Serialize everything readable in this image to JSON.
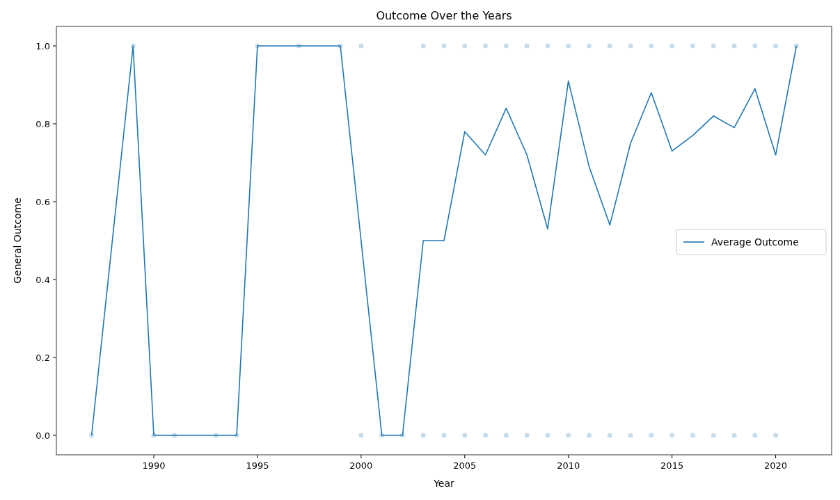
{
  "chart_data": {
    "type": "line",
    "title": "Outcome Over the Years",
    "xlabel": "Year",
    "ylabel": "General Outcome",
    "xlim": [
      1985.3,
      2022.7
    ],
    "xticks": [
      1990,
      1995,
      2000,
      2005,
      2010,
      2015,
      2020
    ],
    "ylim": [
      -0.05,
      1.05
    ],
    "yticks": [
      {
        "value": 0,
        "label": "0.0"
      },
      {
        "value": 0.2,
        "label": "0.2"
      },
      {
        "value": 0.4,
        "label": "0.4"
      },
      {
        "value": 0.6,
        "label": "0.6"
      },
      {
        "value": 0.8,
        "label": "0.8"
      },
      {
        "value": 1,
        "label": "1.0"
      }
    ],
    "grid": false,
    "legend": "right",
    "series": [
      {
        "type": "scatter",
        "color": "#1f77b4",
        "marker": "circle",
        "x": [
          1987,
          1990,
          1991,
          1993,
          1994,
          2000,
          2001,
          2002,
          2003,
          2004,
          2005,
          2006,
          2007,
          2008,
          2009,
          2010,
          2011,
          2012,
          2013,
          2014,
          2015,
          2016,
          2017,
          2018,
          2019,
          2020,
          1989,
          1995,
          1997,
          1999,
          2000,
          2003,
          2004,
          2005,
          2006,
          2007,
          2008,
          2009,
          2010,
          2011,
          2012,
          2013,
          2014,
          2015,
          2016,
          2017,
          2018,
          2019,
          2020,
          2021
        ],
        "values": [
          0,
          0,
          0,
          0,
          0,
          0,
          0,
          0,
          0,
          0,
          0,
          0,
          0,
          0,
          0,
          0,
          0,
          0,
          0,
          0,
          0,
          0,
          0,
          0,
          0,
          0,
          1,
          1,
          1,
          1,
          1,
          1,
          1,
          1,
          1,
          1,
          1,
          1,
          1,
          1,
          1,
          1,
          1,
          1,
          1,
          1,
          1,
          1,
          1,
          1
        ]
      },
      {
        "name": "Average Outcome",
        "color": "#1f77b4",
        "marker": "none",
        "line_style": "solid",
        "x": [
          1987,
          1989,
          1990,
          1991,
          1993,
          1994,
          1995,
          1997,
          1999,
          2000,
          2001,
          2002,
          2003,
          2004,
          2005,
          2006,
          2007,
          2008,
          2009,
          2010,
          2011,
          2012,
          2013,
          2014,
          2015,
          2016,
          2017,
          2018,
          2019,
          2020,
          2021
        ],
        "values": [
          0,
          1,
          0,
          0,
          0,
          0,
          1,
          1,
          1,
          0.5,
          0,
          0,
          0.5,
          0.5,
          0.78,
          0.72,
          0.84,
          0.72,
          0.53,
          0.91,
          0.69,
          0.54,
          0.75,
          0.88,
          0.73,
          0.77,
          0.82,
          0.79,
          0.89,
          0.72,
          1
        ]
      }
    ]
  }
}
